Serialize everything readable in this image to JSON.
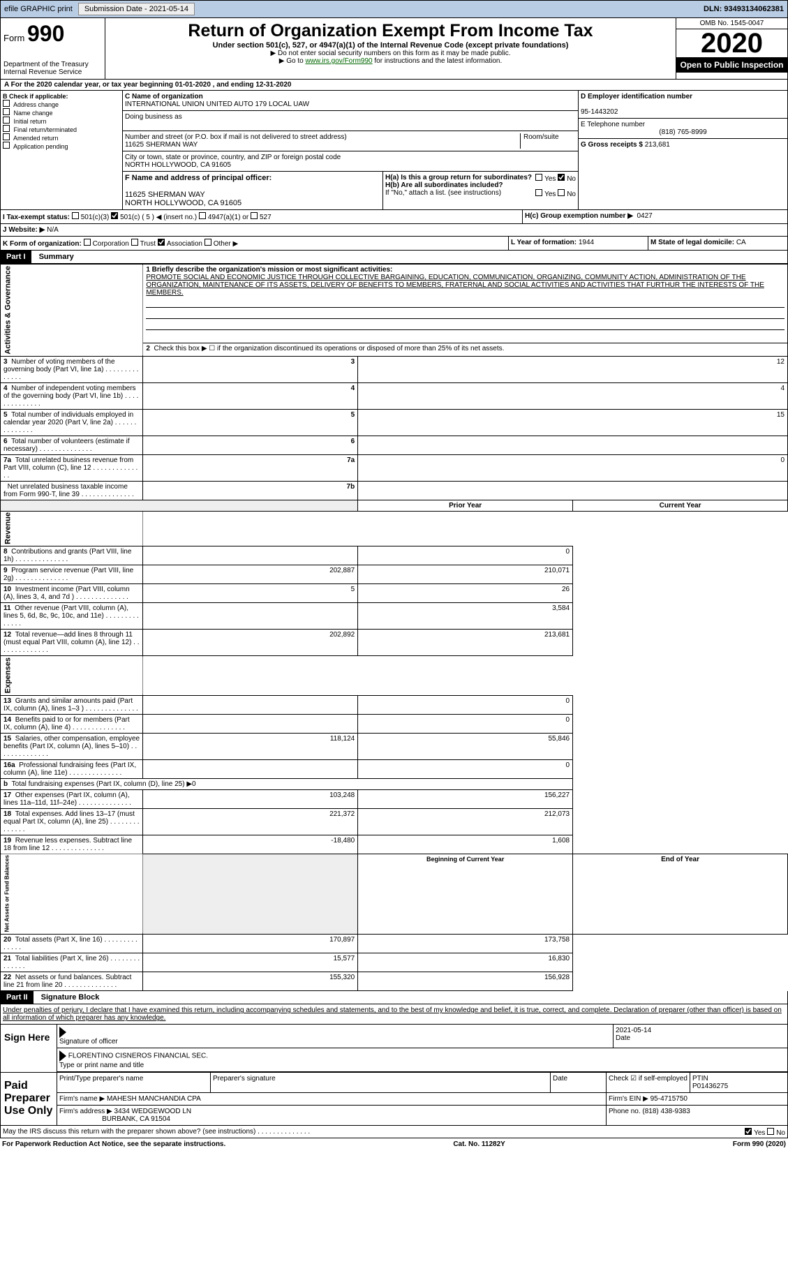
{
  "top_bar": {
    "efile": "efile GRAPHIC print",
    "submission_label": "Submission Date - 2021-05-14",
    "dln_label": "DLN: 93493134062381"
  },
  "header": {
    "form_label": "Form",
    "form_num": "990",
    "title": "Return of Organization Exempt From Income Tax",
    "subtitle": "Under section 501(c), 527, or 4947(a)(1) of the Internal Revenue Code (except private foundations)",
    "instr1": "▶ Do not enter social security numbers on this form as it may be made public.",
    "instr2": "▶ Go to ",
    "instr2_link": "www.irs.gov/Form990",
    "instr2_suffix": " for instructions and the latest information.",
    "dept": "Department of the Treasury",
    "irs": "Internal Revenue Service",
    "omb": "OMB No. 1545-0047",
    "year": "2020",
    "open": "Open to Public Inspection"
  },
  "period": "A For the 2020 calendar year, or tax year beginning 01-01-2020    , and ending 12-31-2020",
  "B": {
    "label": "B Check if applicable:",
    "items": [
      "Address change",
      "Name change",
      "Initial return",
      "Final return/terminated",
      "Amended return",
      "Application pending"
    ]
  },
  "C": {
    "name_label": "C Name of organization",
    "name": "INTERNATIONAL UNION UNITED AUTO 179 LOCAL UAW",
    "dba_label": "Doing business as",
    "dba": "",
    "addr_label": "Number and street (or P.O. box if mail is not delivered to street address)",
    "room_label": "Room/suite",
    "addr": "11625 SHERMAN WAY",
    "city_label": "City or town, state or province, country, and ZIP or foreign postal code",
    "city": "NORTH HOLLYWOOD, CA  91605"
  },
  "D": {
    "label": "D Employer identification number",
    "val": "95-1443202"
  },
  "E": {
    "label": "E Telephone number",
    "val": "(818) 765-8999"
  },
  "G": {
    "label": "G Gross receipts $",
    "val": "213,681"
  },
  "F": {
    "label": "F  Name and address of principal officer:",
    "addr1": "11625 SHERMAN WAY",
    "addr2": "NORTH HOLLYWOOD, CA  91605"
  },
  "H": {
    "a": "H(a)  Is this a group return for subordinates?",
    "b": "H(b)  Are all subordinates included?",
    "note": "If \"No,\" attach a list. (see instructions)",
    "c": "H(c)  Group exemption number ▶",
    "c_val": "0427",
    "yes": "Yes",
    "no": "No"
  },
  "I": {
    "label": "I    Tax-exempt status:",
    "opts": [
      "501(c)(3)",
      "501(c) ( 5 ) ◀ (insert no.)",
      "4947(a)(1) or",
      "527"
    ]
  },
  "J": {
    "label": "J    Website: ▶",
    "val": "N/A"
  },
  "K": {
    "label": "K Form of organization:",
    "opts": [
      "Corporation",
      "Trust",
      "Association",
      "Other ▶"
    ]
  },
  "L": {
    "label": "L Year of formation:",
    "val": "1944"
  },
  "M": {
    "label": "M State of legal domicile:",
    "val": "CA"
  },
  "part1": {
    "hdr": "Part I",
    "title": "Summary",
    "mission_label": "1   Briefly describe the organization's mission or most significant activities:",
    "mission": "PROMOTE SOCIAL AND ECONOMIC JUSTICE THROUGH COLLECTIVE BARGAINING, EDUCATION, COMMUNICATION, ORGANIZING, COMMUNITY ACTION, ADMINISTRATION OF THE ORGANIZATION, MAINTENANCE OF ITS ASSETS, DELIVERY OF BENEFITS TO MEMBERS, FRATERNAL AND SOCIAL ACTIVITIES AND ACTIVITIES THAT FURTHUR THE INTERESTS OF THE MEMBERS.",
    "l2": "Check this box ▶ ☐  if the organization discontinued its operations or disposed of more than 25% of its net assets.",
    "gov_label": "Activities & Governance",
    "rev_label": "Revenue",
    "exp_label": "Expenses",
    "net_label": "Net Assets or Fund Balances",
    "lines_gov": [
      {
        "n": "3",
        "t": "Number of voting members of the governing body (Part VI, line 1a)",
        "box": "3",
        "v": "12"
      },
      {
        "n": "4",
        "t": "Number of independent voting members of the governing body (Part VI, line 1b)",
        "box": "4",
        "v": "4"
      },
      {
        "n": "5",
        "t": "Total number of individuals employed in calendar year 2020 (Part V, line 2a)",
        "box": "5",
        "v": "15"
      },
      {
        "n": "6",
        "t": "Total number of volunteers (estimate if necessary)",
        "box": "6",
        "v": ""
      },
      {
        "n": "7a",
        "t": "Total unrelated business revenue from Part VIII, column (C), line 12",
        "box": "7a",
        "v": "0"
      },
      {
        "n": "",
        "t": "Net unrelated business taxable income from Form 990-T, line 39",
        "box": "7b",
        "v": ""
      }
    ],
    "py": "Prior Year",
    "cy": "Current Year",
    "bcy": "Beginning of Current Year",
    "eoy": "End of Year",
    "lines_rev": [
      {
        "n": "8",
        "t": "Contributions and grants (Part VIII, line 1h)",
        "py": "",
        "cy": "0"
      },
      {
        "n": "9",
        "t": "Program service revenue (Part VIII, line 2g)",
        "py": "202,887",
        "cy": "210,071"
      },
      {
        "n": "10",
        "t": "Investment income (Part VIII, column (A), lines 3, 4, and 7d )",
        "py": "5",
        "cy": "26"
      },
      {
        "n": "11",
        "t": "Other revenue (Part VIII, column (A), lines 5, 6d, 8c, 9c, 10c, and 11e)",
        "py": "",
        "cy": "3,584"
      },
      {
        "n": "12",
        "t": "Total revenue—add lines 8 through 11 (must equal Part VIII, column (A), line 12)",
        "py": "202,892",
        "cy": "213,681"
      }
    ],
    "lines_exp": [
      {
        "n": "13",
        "t": "Grants and similar amounts paid (Part IX, column (A), lines 1–3 )",
        "py": "",
        "cy": "0"
      },
      {
        "n": "14",
        "t": "Benefits paid to or for members (Part IX, column (A), line 4)",
        "py": "",
        "cy": "0"
      },
      {
        "n": "15",
        "t": "Salaries, other compensation, employee benefits (Part IX, column (A), lines 5–10)",
        "py": "118,124",
        "cy": "55,846"
      },
      {
        "n": "16a",
        "t": "Professional fundraising fees (Part IX, column (A), line 11e)",
        "py": "",
        "cy": "0"
      },
      {
        "n": "b",
        "t": "Total fundraising expenses (Part IX, column (D), line 25) ▶0",
        "py": "—",
        "cy": "—"
      },
      {
        "n": "17",
        "t": "Other expenses (Part IX, column (A), lines 11a–11d, 11f–24e)",
        "py": "103,248",
        "cy": "156,227"
      },
      {
        "n": "18",
        "t": "Total expenses. Add lines 13–17 (must equal Part IX, column (A), line 25)",
        "py": "221,372",
        "cy": "212,073"
      },
      {
        "n": "19",
        "t": "Revenue less expenses. Subtract line 18 from line 12",
        "py": "-18,480",
        "cy": "1,608"
      }
    ],
    "lines_net": [
      {
        "n": "20",
        "t": "Total assets (Part X, line 16)",
        "py": "170,897",
        "cy": "173,758"
      },
      {
        "n": "21",
        "t": "Total liabilities (Part X, line 26)",
        "py": "15,577",
        "cy": "16,830"
      },
      {
        "n": "22",
        "t": "Net assets or fund balances. Subtract line 21 from line 20",
        "py": "155,320",
        "cy": "156,928"
      }
    ]
  },
  "part2": {
    "hdr": "Part II",
    "title": "Signature Block",
    "perjury": "Under penalties of perjury, I declare that I have examined this return, including accompanying schedules and statements, and to the best of my knowledge and belief, it is true, correct, and complete. Declaration of preparer (other than officer) is based on all information of which preparer has any knowledge.",
    "sign_here": "Sign Here",
    "sig_officer": "Signature of officer",
    "date": "Date",
    "date_val": "2021-05-14",
    "officer_name": "FLORENTINO CISNEROS  FINANCIAL SEC.",
    "type_name": "Type or print name and title",
    "paid": "Paid Preparer Use Only",
    "prep_name_label": "Print/Type preparer's name",
    "prep_sig_label": "Preparer's signature",
    "check_if": "Check ☑ if self-employed",
    "ptin_label": "PTIN",
    "ptin": "P01436275",
    "firm_name_label": "Firm's name    ▶",
    "firm_name": "MAHESH MANCHANDIA CPA",
    "firm_ein_label": "Firm's EIN ▶",
    "firm_ein": "95-4715750",
    "firm_addr_label": "Firm's address ▶",
    "firm_addr": "3434 WEDGEWOOD LN",
    "firm_addr2": "BURBANK, CA  91504",
    "phone_label": "Phone no.",
    "phone": "(818) 438-9383",
    "discuss": "May the IRS discuss this return with the preparer shown above? (see instructions)"
  },
  "footer": {
    "pra": "For Paperwork Reduction Act Notice, see the separate instructions.",
    "cat": "Cat. No. 11282Y",
    "form": "Form 990 (2020)"
  }
}
